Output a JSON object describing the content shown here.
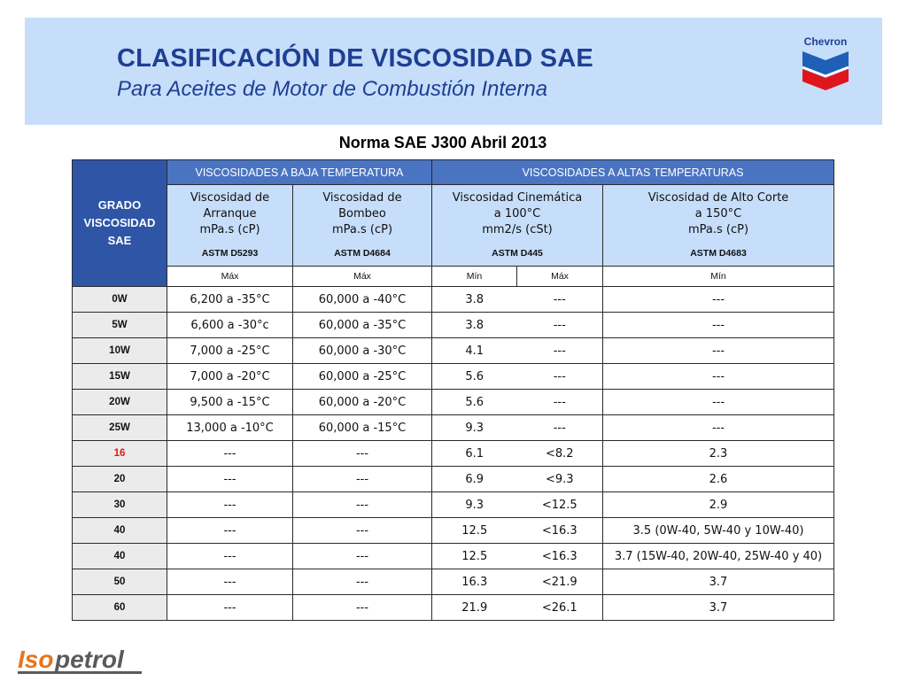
{
  "header": {
    "title": "CLASIFICACIÓN DE VISCOSIDAD SAE",
    "subtitle": "Para Aceites de Motor de Combustión Interna",
    "brand_logo": "Chevron",
    "brand_colors": {
      "blue": "#1e3f93",
      "red": "#e0151b",
      "band": "#c6defa"
    }
  },
  "norma": "Norma SAE J300 Abril 2013",
  "table": {
    "grade_header": "GRADO VISCOSIDAD SAE",
    "band_low": "VISCOSIDADES A BAJA  TEMPERATURA",
    "band_high": "VISCOSIDADES A ALTAS TEMPERATURAS",
    "col_arranque": {
      "l1": "Viscosidad de",
      "l2": "Arranque",
      "l3": "mPa.s (cP)",
      "astm": "ASTM D5293"
    },
    "col_bombeo": {
      "l1": "Viscosidad de",
      "l2": "Bombeo",
      "l3": "mPa.s (cP)",
      "astm": "ASTM D4684"
    },
    "col_cinematica": {
      "l1": "Viscosidad Cinemática",
      "l2": "a 100°C",
      "l3": "mm2/s (cSt)",
      "astm": "ASTM D445"
    },
    "col_alto_corte": {
      "l1": "Viscosidad de Alto Corte",
      "l2": "a 150°C",
      "l3": "mPa.s (cP)",
      "astm": "ASTM D4683"
    },
    "minmax": {
      "arranque": "Máx",
      "bombeo": "Máx",
      "cin_min": "Mín",
      "cin_max": "Máx",
      "hths": "Mín"
    },
    "rows": [
      {
        "grade": "0W",
        "arranque": "6,200 a -35°C",
        "bombeo": "60,000 a -40°C",
        "cin_min": "3.8",
        "cin_max": "---",
        "hths": "---"
      },
      {
        "grade": "5W",
        "arranque": "6,600 a -30°c",
        "bombeo": "60,000 a -35°C",
        "cin_min": "3.8",
        "cin_max": "---",
        "hths": "---"
      },
      {
        "grade": "10W",
        "arranque": "7,000 a -25°C",
        "bombeo": "60,000 a -30°C",
        "cin_min": "4.1",
        "cin_max": "---",
        "hths": "---"
      },
      {
        "grade": "15W",
        "arranque": "7,000 a -20°C",
        "bombeo": "60,000 a -25°C",
        "cin_min": "5.6",
        "cin_max": "---",
        "hths": "---"
      },
      {
        "grade": "20W",
        "arranque": "9,500 a -15°C",
        "bombeo": "60,000 a -20°C",
        "cin_min": "5.6",
        "cin_max": "---",
        "hths": "---"
      },
      {
        "grade": "25W",
        "arranque": "13,000 a -10°C",
        "bombeo": "60,000 a -15°C",
        "cin_min": "9.3",
        "cin_max": "---",
        "hths": "---"
      },
      {
        "grade": "16",
        "arranque": "---",
        "bombeo": "---",
        "cin_min": "6.1",
        "cin_max": "<8.2",
        "hths": "2.3",
        "highlight": "#e0151b"
      },
      {
        "grade": "20",
        "arranque": "---",
        "bombeo": "---",
        "cin_min": "6.9",
        "cin_max": "<9.3",
        "hths": "2.6"
      },
      {
        "grade": "30",
        "arranque": "---",
        "bombeo": "---",
        "cin_min": "9.3",
        "cin_max": "<12.5",
        "hths": "2.9"
      },
      {
        "grade": "40",
        "arranque": "---",
        "bombeo": "---",
        "cin_min": "12.5",
        "cin_max": "<16.3",
        "hths": "3.5 (0W-40, 5W-40 y 10W-40)"
      },
      {
        "grade": "40",
        "arranque": "---",
        "bombeo": "---",
        "cin_min": "12.5",
        "cin_max": "<16.3",
        "hths": "3.7 (15W-40, 20W-40, 25W-40 y 40)"
      },
      {
        "grade": "50",
        "arranque": "---",
        "bombeo": "---",
        "cin_min": "16.3",
        "cin_max": "<21.9",
        "hths": "3.7"
      },
      {
        "grade": "60",
        "arranque": "---",
        "bombeo": "---",
        "cin_min": "21.9",
        "cin_max": "<26.1",
        "hths": "3.7"
      }
    ]
  },
  "footer": {
    "logo_text": "Isopetrol"
  }
}
